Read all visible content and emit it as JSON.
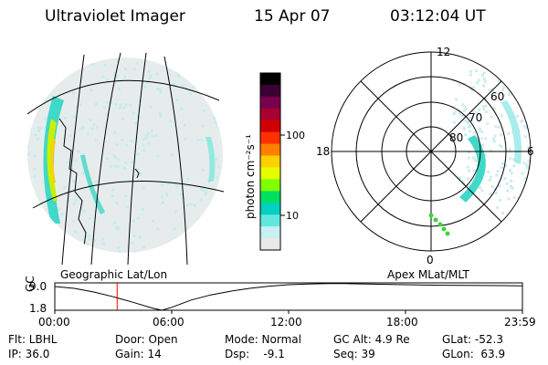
{
  "header": {
    "instrument": "Ultraviolet Imager",
    "date": "15 Apr 07",
    "time": "03:12:04 UT"
  },
  "left_panel": {
    "caption": "Geographic Lat/Lon"
  },
  "right_panel": {
    "caption": "Apex MLat/MLT",
    "mlt_labels": [
      "12",
      "18",
      "6",
      "0"
    ],
    "lat_labels": [
      "60",
      "70",
      "80"
    ]
  },
  "colorbar": {
    "label": "photon cm⁻²s⁻¹",
    "ticks": [
      "100",
      "10"
    ],
    "colors": [
      "#000000",
      "#3a0033",
      "#7a0050",
      "#a80030",
      "#d00000",
      "#ff3000",
      "#ff8000",
      "#ffd000",
      "#e6ff00",
      "#80ff00",
      "#00e060",
      "#00d0c0",
      "#60e8e0",
      "#c8f0f0",
      "#e8e8e8"
    ]
  },
  "chart_data": {
    "type": "line",
    "title": "",
    "xlabel": "",
    "ylabel": "GC Alt",
    "x_ticks": [
      "00:00",
      "06:00",
      "12:00",
      "18:00",
      "23:59"
    ],
    "y_ticks": [
      "9.0",
      "1.8"
    ],
    "xlim": [
      0,
      24
    ],
    "ylim": [
      1.8,
      9.0
    ],
    "series": [
      {
        "x": [
          0,
          1,
          2,
          3,
          4,
          5,
          5.5,
          6,
          7,
          8,
          9,
          10,
          11,
          12,
          13,
          14,
          14.5,
          15,
          16,
          17,
          18,
          19,
          20,
          21,
          22,
          23,
          24
        ],
        "y": [
          8.3,
          7.8,
          6.8,
          5.5,
          4.0,
          2.4,
          1.8,
          2.6,
          4.6,
          6.0,
          7.0,
          7.8,
          8.4,
          8.8,
          9.0,
          9.1,
          9.1,
          9.1,
          9.0,
          8.9,
          8.8,
          8.7,
          8.65,
          8.6,
          8.58,
          8.55,
          8.5
        ]
      }
    ],
    "marker_time": 3.2,
    "marker_color": "#ff0000"
  },
  "footer": {
    "row1": [
      "Flt: LBHL",
      "Door: Open",
      "Mode: Normal",
      "GC Alt: 4.9 Re",
      "GLat: -52.3"
    ],
    "row2": [
      "IP: 36.0",
      "Gain: 14",
      "Dsp:    -9.1",
      "Seq: 39",
      "GLon:  63.9"
    ]
  }
}
